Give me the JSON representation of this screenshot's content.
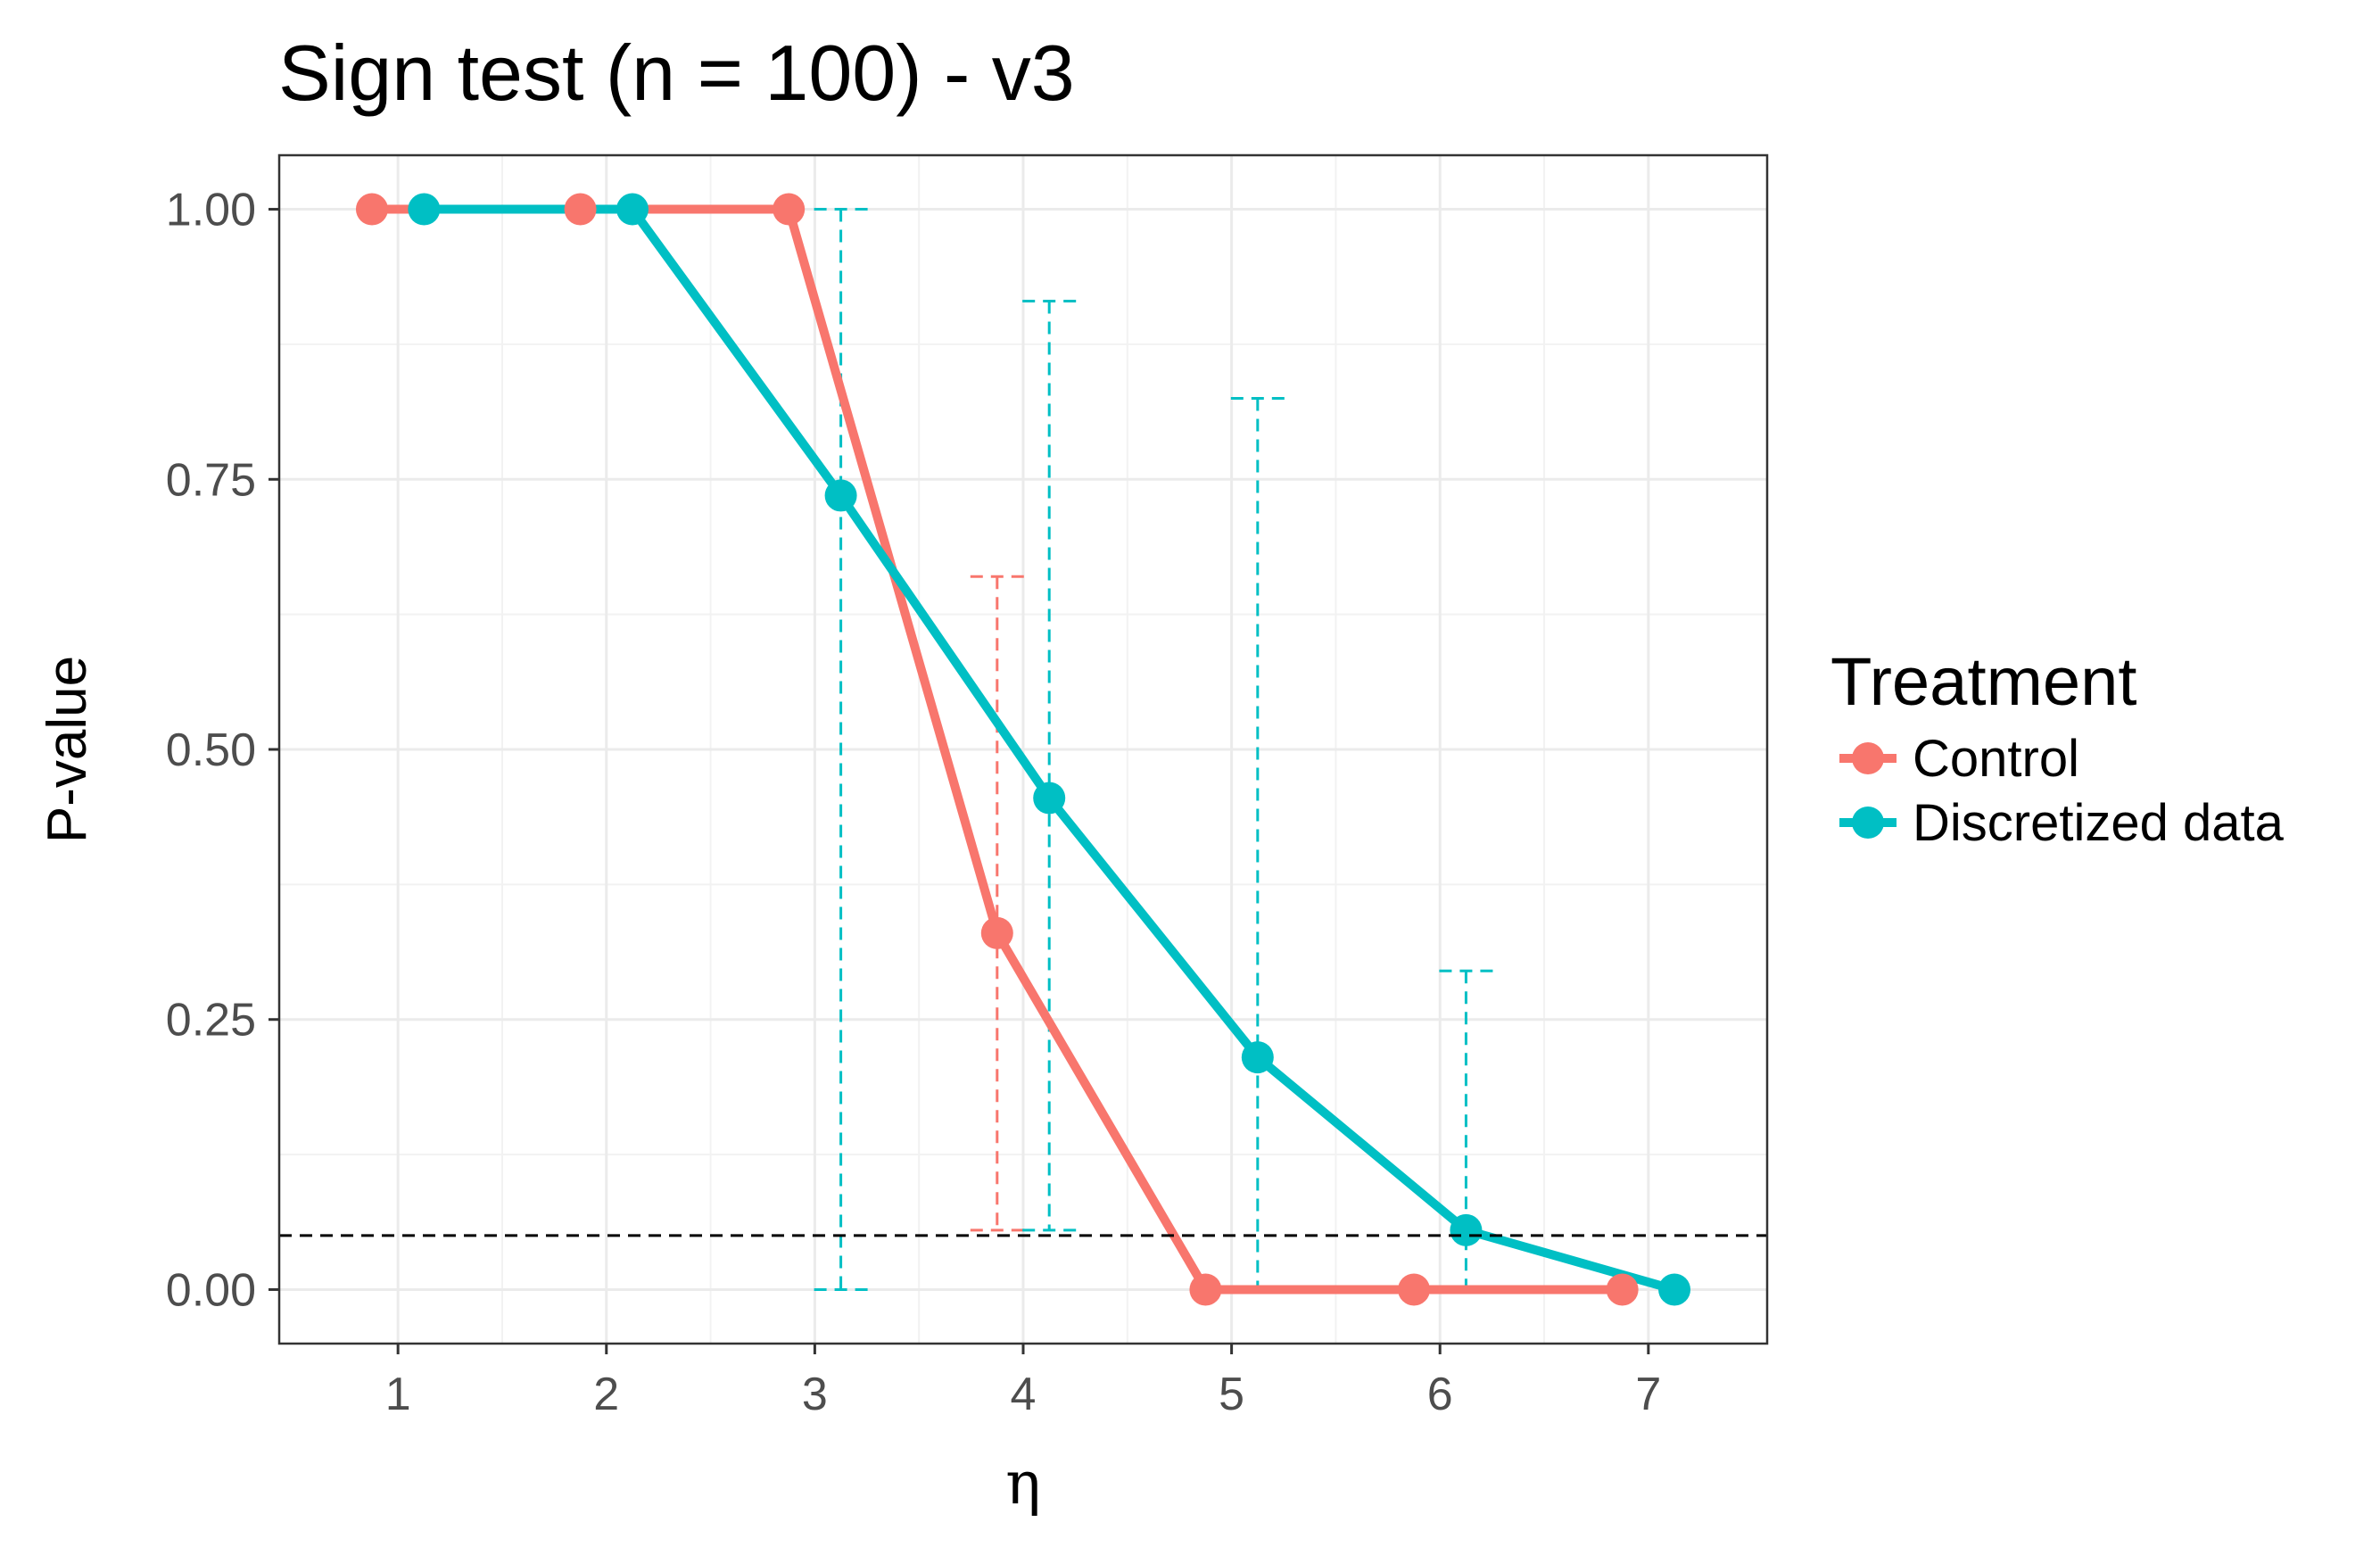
{
  "chart_data": {
    "type": "line",
    "title": "Sign test (n = 100) - v3",
    "xlabel": "η",
    "ylabel": "P-value",
    "xlim": [
      0.43,
      7.57
    ],
    "ylim": [
      -0.05,
      1.05
    ],
    "x_ticks": [
      1,
      2,
      3,
      4,
      5,
      6,
      7
    ],
    "x_tick_labels": [
      "1",
      "2",
      "3",
      "4",
      "5",
      "6",
      "7"
    ],
    "y_ticks": [
      0,
      0.25,
      0.5,
      0.75,
      1
    ],
    "y_tick_labels": [
      "0.00",
      "0.25",
      "0.50",
      "0.75",
      "1.00"
    ],
    "grid": true,
    "reference_line": {
      "y": 0.05,
      "style": "dashed",
      "color": "#000000"
    },
    "legend": {
      "title": "Treatment",
      "position": "right"
    },
    "series": [
      {
        "name": "Control",
        "color": "#F8766D",
        "x": [
          0.875,
          1.875,
          2.875,
          3.875,
          4.875,
          5.875,
          6.875
        ],
        "values": [
          1.0,
          1.0,
          1.0,
          0.33,
          0.0,
          0.0,
          0.0
        ],
        "error_bars": [
          null,
          null,
          null,
          {
            "low": 0.055,
            "high": 0.66
          },
          null,
          null,
          null
        ]
      },
      {
        "name": "Discretized data",
        "color": "#00BFC4",
        "x": [
          1.125,
          2.125,
          3.125,
          4.125,
          5.125,
          6.125,
          7.125
        ],
        "values": [
          1.0,
          1.0,
          0.735,
          0.455,
          0.215,
          0.055,
          0.0
        ],
        "error_bars": [
          null,
          null,
          {
            "low": 0.0,
            "high": 1.0
          },
          {
            "low": 0.055,
            "high": 0.915
          },
          {
            "low": 0.0,
            "high": 0.825
          },
          {
            "low": 0.0,
            "high": 0.295
          },
          null
        ]
      }
    ]
  }
}
